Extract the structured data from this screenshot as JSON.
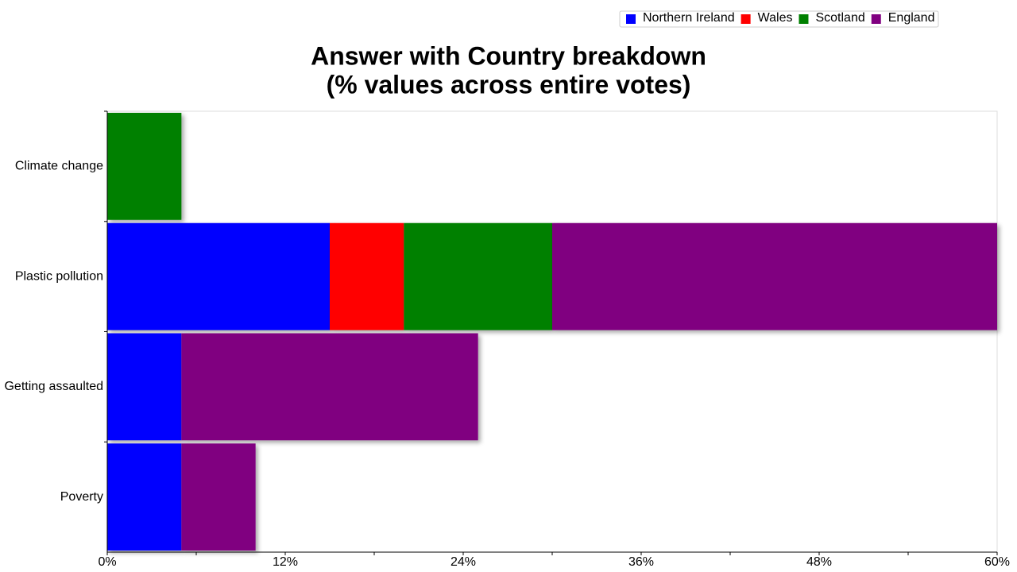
{
  "chart_data": {
    "type": "stacked-bar-horizontal",
    "title": "Answer with Country breakdown",
    "subtitle": "(% values across entire votes)",
    "categories": [
      "Climate change",
      "Plastic pollution",
      "Getting assaulted",
      "Poverty"
    ],
    "series": [
      {
        "name": "Northern Ireland",
        "color": "#0000ff",
        "values": [
          null,
          15,
          5,
          5
        ]
      },
      {
        "name": "Wales",
        "color": "#ff0000",
        "values": [
          null,
          5,
          null,
          null
        ]
      },
      {
        "name": "Scotland",
        "color": "#008000",
        "values": [
          5,
          10,
          null,
          null
        ]
      },
      {
        "name": "England",
        "color": "#800080",
        "values": [
          null,
          30,
          20,
          5
        ]
      }
    ],
    "xlim": [
      0,
      60
    ],
    "xticks": [
      {
        "value": 0,
        "label": "0%"
      },
      {
        "value": 12,
        "label": "12%"
      },
      {
        "value": 24,
        "label": "24%"
      },
      {
        "value": 36,
        "label": "36%"
      },
      {
        "value": 48,
        "label": "48%"
      },
      {
        "value": 60,
        "label": "60%"
      }
    ],
    "legend": "top-right"
  }
}
